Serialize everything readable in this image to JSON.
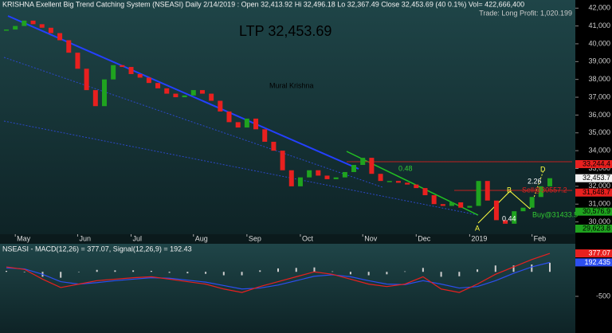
{
  "chart_data": {
    "type": "candlestick",
    "title": "KRISHNA Exellent Big Trend Catching System (NSEASI) Daily  2/14/2019 :  Open 32,413.92  Hi 32,496.18  Lo 32,367.49  Close 32,453.69 (40 0.1%)  Vol= 422,666,400",
    "trade_info": "Trade: Long Profit: 1,020.199",
    "ltp": "LTP 32,453.69",
    "author": "Mural Krishna",
    "closes": [
      40800,
      41000,
      41300,
      41100,
      40900,
      40600,
      40200,
      39500,
      38600,
      37400,
      36500,
      38000,
      38800,
      38700,
      38300,
      38100,
      37800,
      37500,
      37200,
      37000,
      37100,
      37400,
      37200,
      36800,
      36200,
      35600,
      35300,
      35800,
      35200,
      34500,
      34000,
      32900,
      32000,
      32500,
      32900,
      32600,
      32400,
      32500,
      32800,
      33200,
      33600,
      32700,
      32300,
      32300,
      32200,
      32100,
      31900,
      31500,
      31000,
      30900,
      31100,
      30800,
      30900,
      32300,
      31200,
      30100,
      29900,
      30600,
      30800,
      31400,
      32000,
      32453.69
    ],
    "up_color": "#1fa31f",
    "down_color": "#e8201f",
    "ylim": [
      29400,
      42100
    ],
    "yticks": [
      {
        "value": 30000,
        "label": "30,000"
      },
      {
        "value": 31000,
        "label": "31,000"
      },
      {
        "value": 32000,
        "label": "32,000"
      },
      {
        "value": 33000,
        "label": "33,000"
      },
      {
        "value": 34000,
        "label": "34,000"
      },
      {
        "value": 35000,
        "label": "35,000"
      },
      {
        "value": 36000,
        "label": "36,000"
      },
      {
        "value": 37000,
        "label": "37,000"
      },
      {
        "value": 38000,
        "label": "38,000"
      },
      {
        "value": 39000,
        "label": "39,000"
      },
      {
        "value": 40000,
        "label": "40,000"
      },
      {
        "value": 41000,
        "label": "41,000"
      },
      {
        "value": 42000,
        "label": "42,000"
      }
    ],
    "xticks": [
      {
        "value": 1,
        "label": "May"
      },
      {
        "value": 8,
        "label": "Jun"
      },
      {
        "value": 14,
        "label": "Jul"
      },
      {
        "value": 21,
        "label": "Aug"
      },
      {
        "value": 27,
        "label": "Sep"
      },
      {
        "value": 33,
        "label": "Oct"
      },
      {
        "value": 40,
        "label": "Nov"
      },
      {
        "value": 46,
        "label": "Dec"
      },
      {
        "value": 52,
        "label": "2019"
      },
      {
        "value": 59,
        "label": "Feb"
      }
    ],
    "price_levels": [
      {
        "value": 33244.4,
        "label": "33,244.4",
        "color": "#e8201f"
      },
      {
        "value": 32453.7,
        "label": "32,453.7",
        "color": "#f2f2f2"
      },
      {
        "value": 31648.7,
        "label": "31,648.7",
        "color": "#e8201f"
      },
      {
        "value": 30576.9,
        "label": "30,576.9",
        "color": "#1fa31f"
      },
      {
        "value": 29623.8,
        "label": "29,623.8",
        "color": "#1fa31f"
      }
    ],
    "annotations": [
      "0.48",
      "2.26",
      "0.44",
      "Buy@31433.5",
      "Sell@30557.2",
      "D",
      "B",
      "A"
    ],
    "macd": {
      "title": "NSEASI - MACD(12,26) = 377.07, Signal(12,26,9) = 192.43",
      "macd_color": "#e8201f",
      "signal_color": "#2d4ff0",
      "hist_color": "#cfcfcf",
      "macd_values": [
        100,
        50,
        -150,
        -320,
        -250,
        -180,
        -150,
        -120,
        -100,
        -150,
        -200,
        -250,
        -350,
        -420,
        -300,
        -200,
        -100,
        0,
        -50,
        -150,
        -250,
        -300,
        -250,
        -100,
        -350,
        -420,
        -250,
        -50,
        100,
        250,
        377.07
      ],
      "signal_values": [
        80,
        60,
        -50,
        -200,
        -250,
        -220,
        -180,
        -150,
        -120,
        -130,
        -170,
        -210,
        -280,
        -350,
        -330,
        -270,
        -180,
        -90,
        -60,
        -100,
        -180,
        -250,
        -260,
        -180,
        -250,
        -330,
        -300,
        -180,
        -30,
        100,
        192.43
      ],
      "histogram": [
        20,
        -10,
        -100,
        -120,
        0,
        40,
        30,
        30,
        20,
        -20,
        -30,
        -40,
        -70,
        -70,
        30,
        70,
        80,
        90,
        10,
        -50,
        -70,
        -50,
        10,
        80,
        -100,
        -90,
        50,
        130,
        130,
        150,
        185
      ],
      "y2lim": [
        -1150,
        540
      ],
      "y2ticks": [
        -500
      ],
      "value_boxes": [
        {
          "value": 377.07,
          "label": "377.07"
        },
        {
          "value": 192.435,
          "label": "192.435"
        }
      ]
    }
  }
}
